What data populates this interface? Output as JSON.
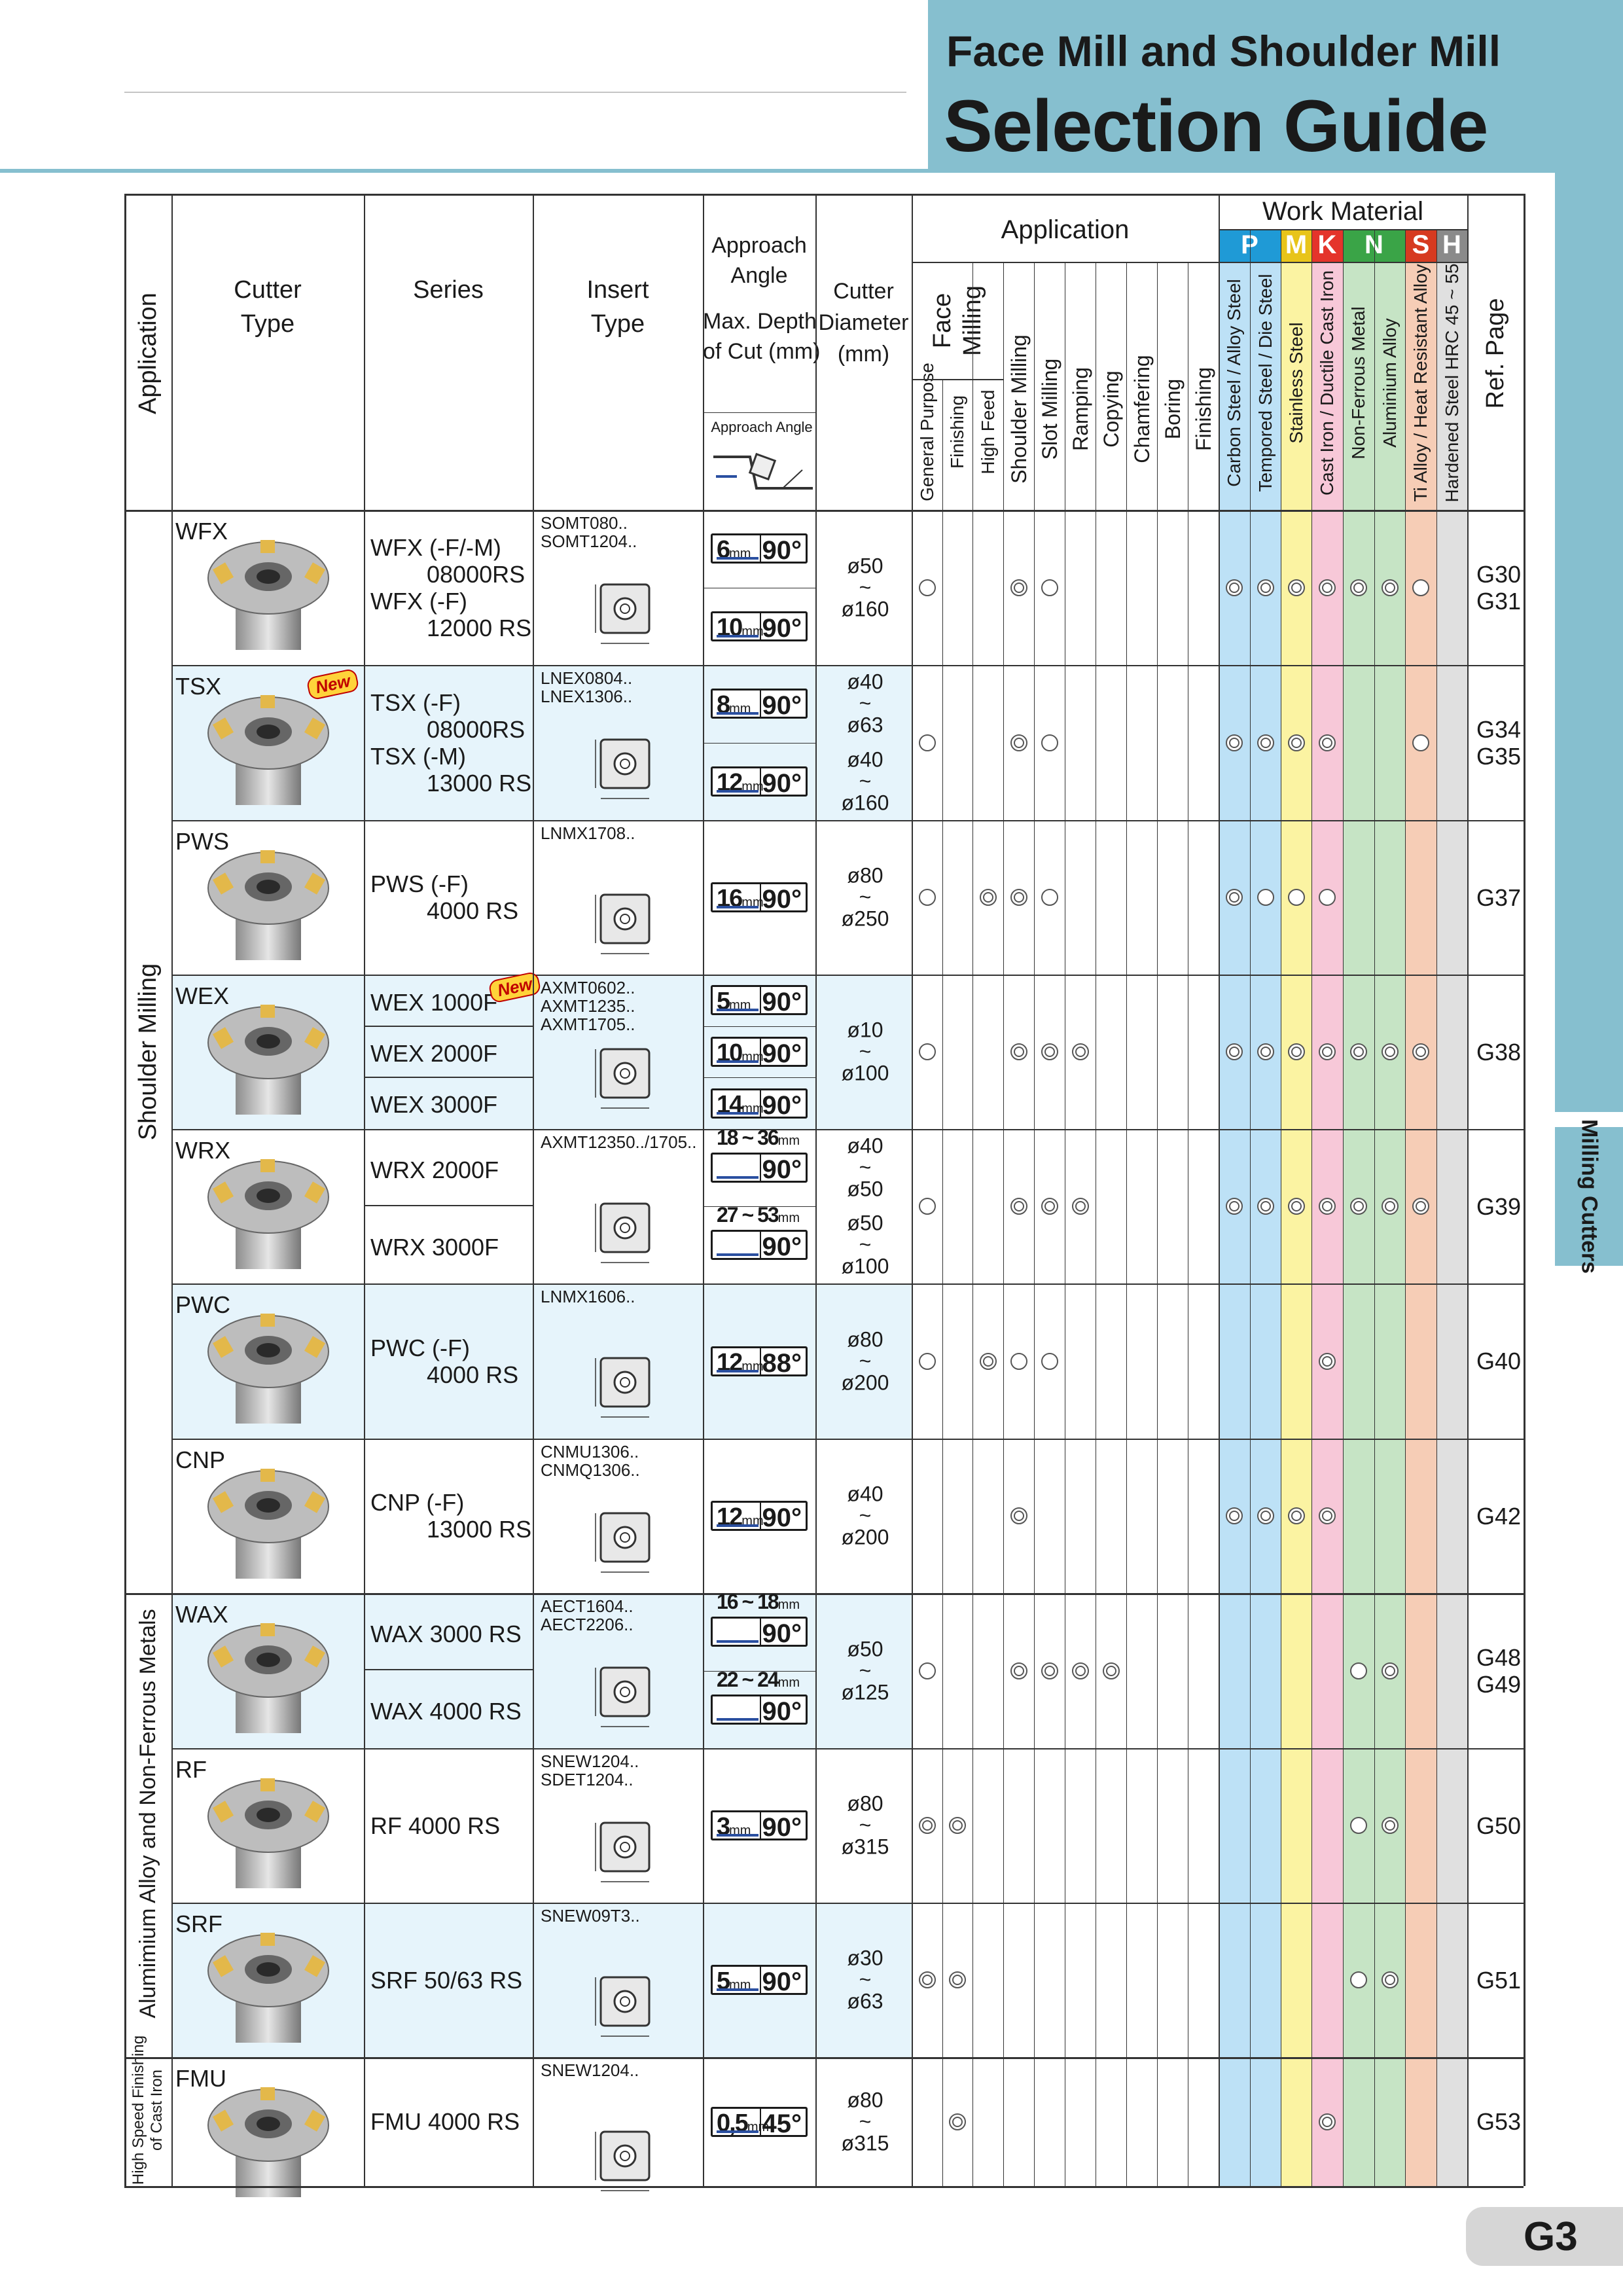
{
  "header": {
    "title_line1": "Face Mill and Shoulder Mill",
    "title_line2": "Selection Guide"
  },
  "side_tab": "Milling Cutters",
  "page_number": "G3",
  "columns": {
    "application": "Application",
    "cutter_type": [
      "Cutter",
      "Type"
    ],
    "series": "Series",
    "insert_type": [
      "Insert",
      "Type"
    ],
    "approach": [
      "Approach",
      "Angle",
      "Max. Depth",
      "of Cut (mm)"
    ],
    "approach_diagram_label": "Approach Angle",
    "cutter_diameter": [
      "Cutter",
      "Diameter",
      "(mm)"
    ],
    "application_group": "Application",
    "face_milling": [
      "Face",
      "Milling"
    ],
    "apps": [
      "General Purpose",
      "Finishing",
      "High Feed",
      "Shoulder Milling",
      "Slot Milling",
      "Ramping",
      "Copying",
      "Chamfering",
      "Boring",
      "Finishing"
    ],
    "work_material": "Work Material",
    "material_groups": [
      {
        "letter": "P",
        "color": "#1f9ad6"
      },
      {
        "letter": "M",
        "color": "#e8c41a"
      },
      {
        "letter": "K",
        "color": "#e4342b"
      },
      {
        "letter": "N",
        "color": "#3aa447"
      },
      {
        "letter": "S",
        "color": "#d63a20"
      },
      {
        "letter": "H",
        "color": "#8a8a8a"
      }
    ],
    "materials": [
      {
        "label": "Carbon Steel / Alloy Steel",
        "color": "#bde1f6"
      },
      {
        "label": "Tempored Steel / Die Steel",
        "color": "#bde1f6"
      },
      {
        "label": "Stainless Steel",
        "color": "#fbf3a2"
      },
      {
        "label": "Cast Iron / Ductile Cast Iron",
        "color": "#f7c8d8"
      },
      {
        "label": "Non-Ferrous Metal",
        "color": "#c6e4c5"
      },
      {
        "label": "Aluminium Alloy",
        "color": "#c6e4c5"
      },
      {
        "label": "Ti Alloy / Heat Resistant Alloy",
        "color": "#f6cdb6"
      },
      {
        "label": "Hardened Steel HRC 45 ~ 55",
        "color": "#e0e0e0"
      }
    ],
    "ref_page": "Ref. Page"
  },
  "groups": [
    {
      "label": "Shoulder Milling"
    },
    {
      "label": "Alumimium Alloy  and  Non-Ferrous Metals"
    },
    {
      "label_lines": [
        "High Speed Finishing",
        "of Cast Iron"
      ]
    }
  ],
  "new_badge": "New",
  "rows": [
    {
      "cutter": "WFX",
      "series": [
        [
          "WFX (-F/-M)",
          "08000RS"
        ],
        [
          "WFX (-F)",
          "12000 RS"
        ]
      ],
      "insert": [
        "SOMT080..",
        "SOMT1204.."
      ],
      "approach": [
        {
          "depth": "6",
          "unit": "mm",
          "angle": "90°"
        },
        {
          "depth": "10",
          "unit": "mm",
          "angle": "90°"
        }
      ],
      "diameter": [
        "ø50",
        "~",
        "ø160"
      ],
      "apps": "1,0,0,2,1,0,0,0,0,0",
      "mats": "2,2,2,2,2,2,1,0",
      "ref": [
        "G30",
        "G31"
      ]
    },
    {
      "cutter": "TSX",
      "is_new": true,
      "series": [
        [
          "TSX (-F)",
          "08000RS"
        ],
        [
          "TSX (-M)",
          "13000 RS"
        ]
      ],
      "insert": [
        "LNEX0804..",
        "LNEX1306.."
      ],
      "approach": [
        {
          "depth": "8",
          "unit": "mm",
          "angle": "90°"
        },
        {
          "depth": "12",
          "unit": "mm",
          "angle": "90°"
        }
      ],
      "diameter": [
        "ø40",
        "~",
        "ø63",
        "ø40",
        "~",
        "ø160"
      ],
      "apps": "1,0,0,2,1,0,0,0,0,0",
      "mats": "2,2,2,2,0,0,1,0",
      "ref": [
        "G34",
        "G35"
      ]
    },
    {
      "cutter": "PWS",
      "series": [
        [
          "PWS (-F)",
          "4000 RS"
        ]
      ],
      "insert": [
        "LNMX1708.."
      ],
      "approach": [
        {
          "depth": "16",
          "unit": "mm",
          "angle": "90°"
        }
      ],
      "diameter": [
        "ø80",
        "~",
        "ø250"
      ],
      "apps": "1,0,2,2,1,0,0,0,0,0",
      "mats": "2,1,1,1,0,0,0,0",
      "ref": [
        "G37"
      ]
    },
    {
      "cutter": "WEX",
      "series": [
        [
          "WEX 1000F"
        ],
        [
          "WEX 2000F"
        ],
        [
          "WEX 3000F"
        ]
      ],
      "series_new": true,
      "insert": [
        "AXMT0602..",
        "AXMT1235..",
        "AXMT1705.."
      ],
      "approach": [
        {
          "depth": "5",
          "unit": "mm",
          "angle": "90°"
        },
        {
          "depth": "10",
          "unit": "mm",
          "angle": "90°"
        },
        {
          "depth": "14",
          "unit": "mm",
          "angle": "90°"
        }
      ],
      "diameter": [
        "ø10",
        "~",
        "ø100"
      ],
      "apps": "1,0,0,2,2,2,0,0,0,0",
      "mats": "2,2,2,2,2,2,2,0",
      "ref": [
        "G38"
      ]
    },
    {
      "cutter": "WRX",
      "series": [
        [
          "WRX 2000F"
        ],
        [
          "WRX 3000F"
        ]
      ],
      "insert": [
        "AXMT12350../1705.."
      ],
      "approach": [
        {
          "depth": "18 ~ 36",
          "unit": "mm",
          "angle": "90°"
        },
        {
          "depth": "27 ~ 53",
          "unit": "mm",
          "angle": "90°"
        }
      ],
      "diameter": [
        "ø40",
        "~",
        "ø50",
        "ø50",
        "~",
        "ø100"
      ],
      "apps": "1,0,0,2,2,2,0,0,0,0",
      "mats": "2,2,2,2,2,2,2,0",
      "ref": [
        "G39"
      ]
    },
    {
      "cutter": "PWC",
      "series": [
        [
          "PWC (-F)",
          "4000 RS"
        ]
      ],
      "insert": [
        "LNMX1606.."
      ],
      "approach": [
        {
          "depth": "12",
          "unit": "mm",
          "angle": "88°"
        }
      ],
      "diameter": [
        "ø80",
        "~",
        "ø200"
      ],
      "apps": "1,0,2,1,1,0,0,0,0,0",
      "mats": "0,0,0,2,0,0,0,0",
      "ref": [
        "G40"
      ]
    },
    {
      "cutter": "CNP",
      "series": [
        [
          "CNP (-F)",
          "13000 RS"
        ]
      ],
      "insert": [
        "CNMU1306..",
        "CNMQ1306.."
      ],
      "approach": [
        {
          "depth": "12",
          "unit": "mm",
          "angle": "90°"
        }
      ],
      "diameter": [
        "ø40",
        "~",
        "ø200"
      ],
      "apps": "0,0,0,2,0,0,0,0,0,0",
      "mats": "2,2,2,2,0,0,0,0",
      "ref": [
        "G42"
      ]
    },
    {
      "cutter": "WAX",
      "series": [
        [
          "WAX 3000 RS"
        ],
        [
          "WAX 4000 RS"
        ]
      ],
      "insert": [
        "AECT1604..",
        "AECT2206.."
      ],
      "approach": [
        {
          "depth": "16 ~ 18",
          "unit": "mm",
          "angle": "90°"
        },
        {
          "depth": "22 ~ 24",
          "unit": "mm",
          "angle": "90°"
        }
      ],
      "diameter": [
        "ø50",
        "~",
        "ø125"
      ],
      "apps": "1,0,0,2,2,2,2,0,0,0",
      "mats": "0,0,0,0,1,2,0,0",
      "ref": [
        "G48",
        "G49"
      ]
    },
    {
      "cutter": "RF",
      "series": [
        [
          "RF 4000 RS"
        ]
      ],
      "insert": [
        "SNEW1204..",
        "SDET1204.."
      ],
      "approach": [
        {
          "depth": "3",
          "unit": "mm",
          "angle": "90°"
        }
      ],
      "diameter": [
        "ø80",
        "~",
        "ø315"
      ],
      "apps": "2,2,0,0,0,0,0,0,0,0",
      "mats": "0,0,0,0,1,2,0,0",
      "ref": [
        "G50"
      ]
    },
    {
      "cutter": "SRF",
      "series": [
        [
          "SRF  50/63 RS"
        ]
      ],
      "insert": [
        "SNEW09T3.."
      ],
      "approach": [
        {
          "depth": "5",
          "unit": "mm",
          "angle": "90°"
        }
      ],
      "diameter": [
        "ø30",
        "~",
        "ø63"
      ],
      "apps": "2,2,0,0,0,0,0,0,0,0",
      "mats": "0,0,0,0,1,2,0,0",
      "ref": [
        "G51"
      ]
    },
    {
      "cutter": "FMU",
      "series": [
        [
          "FMU 4000 RS"
        ]
      ],
      "insert": [
        "SNEW1204.."
      ],
      "approach": [
        {
          "depth": "0,5",
          "unit": "mm",
          "angle": "45°"
        }
      ],
      "diameter": [
        "ø80",
        "~",
        "ø315"
      ],
      "apps": "0,2,0,0,0,0,0,0,0,0",
      "mats": "0,0,0,2,0,0,0,0",
      "ref": [
        "G53"
      ]
    }
  ]
}
